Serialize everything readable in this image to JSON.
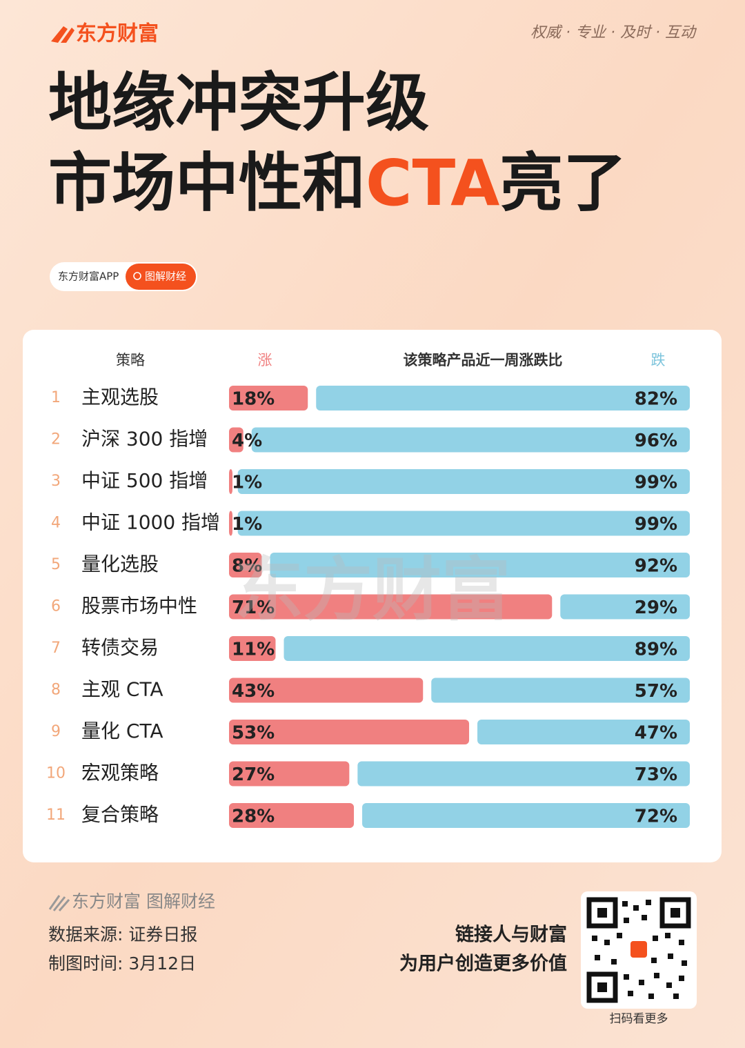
{
  "brand": "东方财富",
  "slogan": "权威 · 专业 · 及时 · 互动",
  "headline": {
    "line1": "地缘冲突升级",
    "line2_pre": "市场中性和",
    "line2_accent": "CTA",
    "line2_post": "亮了"
  },
  "search_tag": {
    "app": "东方财富APP",
    "button": "图解财经"
  },
  "watermark": "东方财富",
  "chart_data": {
    "type": "diverging-bar",
    "title": "该策略产品近一周涨跌比",
    "category_label": "策略",
    "ranks": [
      "1",
      "2",
      "3",
      "4",
      "5",
      "6",
      "7",
      "8",
      "9",
      "10",
      "11"
    ],
    "categories": [
      "主观选股",
      "沪深 300 指增",
      "中证 500 指增",
      "中证 1000 指增",
      "量化选股",
      "股票市场中性",
      "转债交易",
      "主观 CTA",
      "量化 CTA",
      "宏观策略",
      "复合策略"
    ],
    "xlim": [
      0,
      100
    ],
    "series": [
      {
        "name": "涨",
        "color": "#f08080",
        "values": [
          18,
          4,
          1,
          1,
          8,
          71,
          11,
          43,
          53,
          27,
          28
        ],
        "value_labels": [
          "18%",
          "4%",
          "1%",
          "1%",
          "8%",
          "71%",
          "11%",
          "43%",
          "53%",
          "27%",
          "28%"
        ]
      },
      {
        "name": "跌",
        "color": "#92d2e6",
        "values": [
          82,
          96,
          99,
          99,
          92,
          29,
          89,
          57,
          47,
          73,
          72
        ],
        "value_labels": [
          "82%",
          "96%",
          "99%",
          "99%",
          "92%",
          "29%",
          "89%",
          "57%",
          "47%",
          "73%",
          "72%"
        ]
      }
    ]
  },
  "footer": {
    "brand": "东方财富 图解财经",
    "source": "数据来源: 证券日报",
    "date": "制图时间: 3月12日",
    "motto1": "链接人与财富",
    "motto2": "为用户创造更多价值",
    "qr_caption": "扫码看更多"
  }
}
